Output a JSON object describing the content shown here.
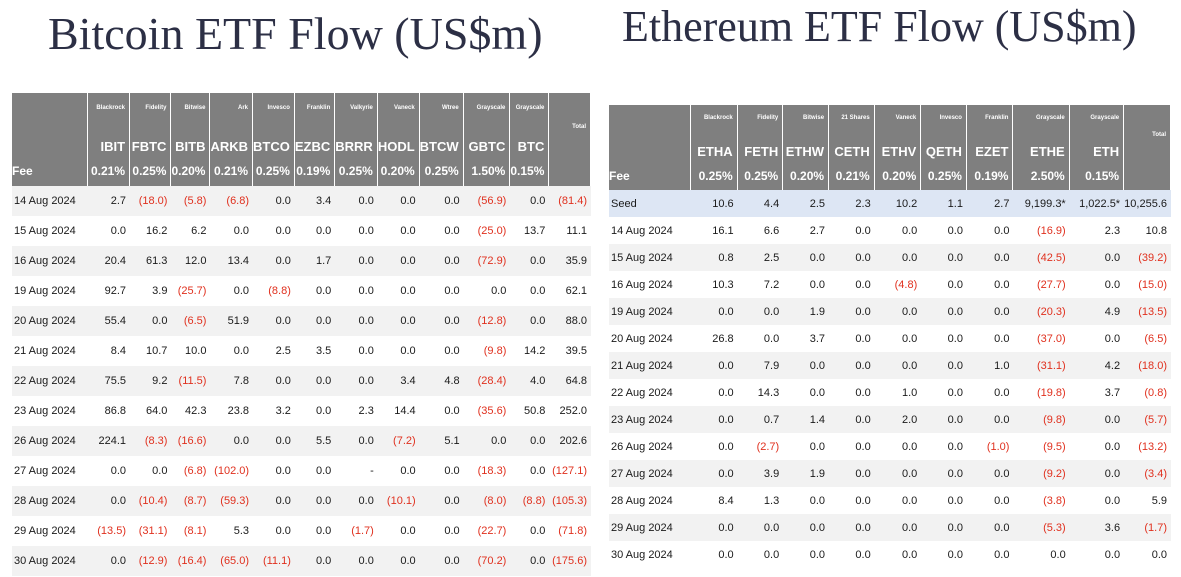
{
  "bitcoin": {
    "title": "Bitcoin ETF Flow (US$m)",
    "managers": [
      "",
      "Blackrock",
      "Fidelity",
      "Bitwise",
      "Ark",
      "Invesco",
      "Franklin",
      "Valkyrie",
      "Vaneck",
      "Wtree",
      "Grayscale",
      "Grayscale",
      "Total"
    ],
    "tickers": [
      "",
      "IBIT",
      "FBTC",
      "BITB",
      "ARKB",
      "BTCO",
      "EZBC",
      "BRRR",
      "HODL",
      "BTCW",
      "GBTC",
      "BTC",
      ""
    ],
    "fee": [
      "Fee",
      "0.21%",
      "0.25%",
      "0.20%",
      "0.21%",
      "0.25%",
      "0.19%",
      "0.25%",
      "0.20%",
      "0.25%",
      "1.50%",
      "0.15%",
      ""
    ],
    "rows": [
      [
        "14 Aug 2024",
        "2.7",
        "(18.0)",
        "(5.8)",
        "(6.8)",
        "0.0",
        "3.4",
        "0.0",
        "0.0",
        "0.0",
        "(56.9)",
        "0.0",
        "(81.4)"
      ],
      [
        "15 Aug 2024",
        "0.0",
        "16.2",
        "6.2",
        "0.0",
        "0.0",
        "0.0",
        "0.0",
        "0.0",
        "0.0",
        "(25.0)",
        "13.7",
        "11.1"
      ],
      [
        "16 Aug 2024",
        "20.4",
        "61.3",
        "12.0",
        "13.4",
        "0.0",
        "1.7",
        "0.0",
        "0.0",
        "0.0",
        "(72.9)",
        "0.0",
        "35.9"
      ],
      [
        "19 Aug 2024",
        "92.7",
        "3.9",
        "(25.7)",
        "0.0",
        "(8.8)",
        "0.0",
        "0.0",
        "0.0",
        "0.0",
        "0.0",
        "0.0",
        "62.1"
      ],
      [
        "20 Aug 2024",
        "55.4",
        "0.0",
        "(6.5)",
        "51.9",
        "0.0",
        "0.0",
        "0.0",
        "0.0",
        "0.0",
        "(12.8)",
        "0.0",
        "88.0"
      ],
      [
        "21 Aug 2024",
        "8.4",
        "10.7",
        "10.0",
        "0.0",
        "2.5",
        "3.5",
        "0.0",
        "0.0",
        "0.0",
        "(9.8)",
        "14.2",
        "39.5"
      ],
      [
        "22 Aug 2024",
        "75.5",
        "9.2",
        "(11.5)",
        "7.8",
        "0.0",
        "0.0",
        "0.0",
        "3.4",
        "4.8",
        "(28.4)",
        "4.0",
        "64.8"
      ],
      [
        "23 Aug 2024",
        "86.8",
        "64.0",
        "42.3",
        "23.8",
        "3.2",
        "0.0",
        "2.3",
        "14.4",
        "0.0",
        "(35.6)",
        "50.8",
        "252.0"
      ],
      [
        "26 Aug 2024",
        "224.1",
        "(8.3)",
        "(16.6)",
        "0.0",
        "0.0",
        "5.5",
        "0.0",
        "(7.2)",
        "5.1",
        "0.0",
        "0.0",
        "202.6"
      ],
      [
        "27 Aug 2024",
        "0.0",
        "0.0",
        "(6.8)",
        "(102.0)",
        "0.0",
        "0.0",
        "-",
        "0.0",
        "0.0",
        "(18.3)",
        "0.0",
        "(127.1)"
      ],
      [
        "28 Aug 2024",
        "0.0",
        "(10.4)",
        "(8.7)",
        "(59.3)",
        "0.0",
        "0.0",
        "0.0",
        "(10.1)",
        "0.0",
        "(8.0)",
        "(8.8)",
        "(105.3)"
      ],
      [
        "29 Aug 2024",
        "(13.5)",
        "(31.1)",
        "(8.1)",
        "5.3",
        "0.0",
        "0.0",
        "(1.7)",
        "0.0",
        "0.0",
        "(22.7)",
        "0.0",
        "(71.8)"
      ],
      [
        "30 Aug 2024",
        "0.0",
        "(12.9)",
        "(16.4)",
        "(65.0)",
        "(11.1)",
        "0.0",
        "0.0",
        "0.0",
        "0.0",
        "(70.2)",
        "0.0",
        "(175.6)"
      ]
    ]
  },
  "ethereum": {
    "title": "Ethereum ETF Flow (US$m)",
    "managers": [
      "",
      "Blackrock",
      "Fidelity",
      "Bitwise",
      "21 Shares",
      "Vaneck",
      "Invesco",
      "Franklin",
      "Grayscale",
      "Grayscale",
      "Total"
    ],
    "tickers": [
      "",
      "ETHA",
      "FETH",
      "ETHW",
      "CETH",
      "ETHV",
      "QETH",
      "EZET",
      "ETHE",
      "ETH",
      ""
    ],
    "fee": [
      "Fee",
      "0.25%",
      "0.25%",
      "0.20%",
      "0.21%",
      "0.20%",
      "0.25%",
      "0.19%",
      "2.50%",
      "0.15%",
      ""
    ],
    "rows": [
      [
        "Seed",
        "10.6",
        "4.4",
        "2.5",
        "2.3",
        "10.2",
        "1.1",
        "2.7",
        "9,199.3*",
        "1,022.5*",
        "10,255.6"
      ],
      [
        "14 Aug 2024",
        "16.1",
        "6.6",
        "2.7",
        "0.0",
        "0.0",
        "0.0",
        "0.0",
        "(16.9)",
        "2.3",
        "10.8"
      ],
      [
        "15 Aug 2024",
        "0.8",
        "2.5",
        "0.0",
        "0.0",
        "0.0",
        "0.0",
        "0.0",
        "(42.5)",
        "0.0",
        "(39.2)"
      ],
      [
        "16 Aug 2024",
        "10.3",
        "7.2",
        "0.0",
        "0.0",
        "(4.8)",
        "0.0",
        "0.0",
        "(27.7)",
        "0.0",
        "(15.0)"
      ],
      [
        "19 Aug 2024",
        "0.0",
        "0.0",
        "1.9",
        "0.0",
        "0.0",
        "0.0",
        "0.0",
        "(20.3)",
        "4.9",
        "(13.5)"
      ],
      [
        "20 Aug 2024",
        "26.8",
        "0.0",
        "3.7",
        "0.0",
        "0.0",
        "0.0",
        "0.0",
        "(37.0)",
        "0.0",
        "(6.5)"
      ],
      [
        "21 Aug 2024",
        "0.0",
        "7.9",
        "0.0",
        "0.0",
        "0.0",
        "0.0",
        "1.0",
        "(31.1)",
        "4.2",
        "(18.0)"
      ],
      [
        "22 Aug 2024",
        "0.0",
        "14.3",
        "0.0",
        "0.0",
        "1.0",
        "0.0",
        "0.0",
        "(19.8)",
        "3.7",
        "(0.8)"
      ],
      [
        "23 Aug 2024",
        "0.0",
        "0.7",
        "1.4",
        "0.0",
        "2.0",
        "0.0",
        "0.0",
        "(9.8)",
        "0.0",
        "(5.7)"
      ],
      [
        "26 Aug 2024",
        "0.0",
        "(2.7)",
        "0.0",
        "0.0",
        "0.0",
        "0.0",
        "(1.0)",
        "(9.5)",
        "0.0",
        "(13.2)"
      ],
      [
        "27 Aug 2024",
        "0.0",
        "3.9",
        "1.9",
        "0.0",
        "0.0",
        "0.0",
        "0.0",
        "(9.2)",
        "0.0",
        "(3.4)"
      ],
      [
        "28 Aug 2024",
        "8.4",
        "1.3",
        "0.0",
        "0.0",
        "0.0",
        "0.0",
        "0.0",
        "(3.8)",
        "0.0",
        "5.9"
      ],
      [
        "29 Aug 2024",
        "0.0",
        "0.0",
        "0.0",
        "0.0",
        "0.0",
        "0.0",
        "0.0",
        "(5.3)",
        "3.6",
        "(1.7)"
      ],
      [
        "30 Aug 2024",
        "0.0",
        "0.0",
        "0.0",
        "0.0",
        "0.0",
        "0.0",
        "0.0",
        "0.0",
        "0.0",
        "0.0"
      ]
    ]
  },
  "colors": {
    "header_bg": "#7f7f7f",
    "negative": "#e0301e",
    "seed_row": "#dde6f4",
    "title": "#2c2f45"
  }
}
